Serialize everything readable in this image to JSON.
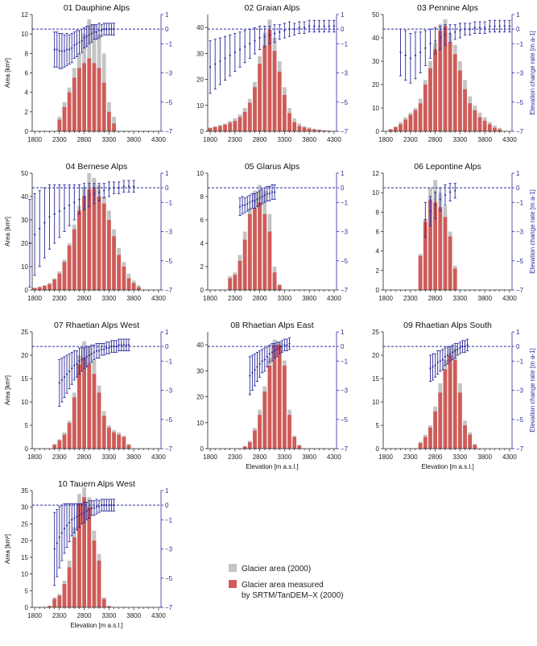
{
  "colors": {
    "bar_total": "#c4c4c4",
    "bar_measured": "#cf5b58",
    "rate": "#2b2b9b",
    "axis": "#222222"
  },
  "labels": {
    "area_axis": "Area [km²]",
    "elevation_axis": "Elevation [m a.s.l.]",
    "rate_axis": "Elevation change rate [m a-1]"
  },
  "legend": {
    "total": "Glacier area (2000)",
    "measured_line1": "Glacier area measured",
    "measured_line2": "by SRTM/TanDEM–X (2000)"
  },
  "chart_data": [
    {
      "type": "bar",
      "title": "01 Dauphine Alps",
      "elev_min": 1800,
      "elev_step": 100,
      "xticks": [
        1800,
        2300,
        2800,
        3300,
        3800,
        4300
      ],
      "ylim": [
        0,
        12
      ],
      "yticks": [
        0,
        2,
        4,
        6,
        8,
        10,
        12
      ],
      "rate_ticks": [
        1,
        0,
        -1,
        -3,
        -5,
        -7
      ],
      "total": [
        0,
        0,
        0,
        0,
        0,
        1.5,
        3,
        4.5,
        6.5,
        8,
        10,
        11.5,
        11,
        10,
        8,
        3,
        1.5
      ],
      "measured": [
        0,
        0,
        0,
        0,
        0,
        1.2,
        2.5,
        4,
        5.5,
        6.5,
        7,
        7.5,
        7,
        6.5,
        5,
        2,
        0.8
      ],
      "rate_elev": [
        2200,
        2250,
        2300,
        2350,
        2400,
        2450,
        2500,
        2550,
        2600,
        2650,
        2700,
        2750,
        2800,
        2850,
        2900,
        2950,
        3000,
        3050,
        3100,
        3150,
        3200,
        3250,
        3300,
        3350,
        3400
      ],
      "rate": [
        -1.4,
        -1.4,
        -1.5,
        -1.5,
        -1.5,
        -1.4,
        -1.4,
        -1.3,
        -1.1,
        -1.0,
        -0.9,
        -0.8,
        -0.6,
        -0.5,
        -0.4,
        -0.3,
        -0.2,
        -0.2,
        -0.1,
        -0.1,
        0.0,
        0.0,
        0.0,
        0.0,
        0.0
      ],
      "rate_err": [
        1.2,
        1.2,
        1.2,
        1.2,
        1.1,
        1.1,
        1.0,
        1.0,
        0.9,
        0.9,
        0.8,
        0.8,
        0.7,
        0.7,
        0.6,
        0.6,
        0.5,
        0.5,
        0.5,
        0.4,
        0.4,
        0.4,
        0.4,
        0.4,
        0.4
      ],
      "show_left_label": true,
      "show_right_label": false,
      "show_xlabel": false
    },
    {
      "type": "bar",
      "title": "02 Graian Alps",
      "elev_min": 1800,
      "elev_step": 100,
      "xticks": [
        1800,
        2300,
        2800,
        3300,
        3800,
        4300
      ],
      "ylim": [
        0,
        45
      ],
      "yticks": [
        0,
        10,
        20,
        30,
        40
      ],
      "rate_ticks": [
        1,
        0,
        -1,
        -3,
        -5,
        -7
      ],
      "total": [
        1.5,
        2,
        2.5,
        3,
        4,
        5,
        6.5,
        9,
        12.5,
        19,
        29,
        38,
        43,
        36,
        27,
        17,
        9,
        5,
        3,
        2,
        1.5,
        1,
        0.7,
        0.4,
        0.3
      ],
      "measured": [
        1.2,
        1.6,
        2,
        2.5,
        3.3,
        4,
        5.5,
        7.5,
        11,
        17,
        26,
        33,
        39,
        31,
        23,
        14,
        7,
        3.5,
        2,
        1.5,
        1,
        0.7,
        0.5,
        0.3,
        0.2
      ],
      "rate_elev": [
        1800,
        1900,
        2000,
        2100,
        2200,
        2300,
        2400,
        2500,
        2600,
        2700,
        2800,
        2900,
        3000,
        3100,
        3200,
        3300,
        3400,
        3500,
        3600,
        3700,
        3800,
        3900,
        4000,
        4100,
        4200,
        4300
      ],
      "rate": [
        -2.6,
        -2.4,
        -2.2,
        -2.0,
        -1.8,
        -1.6,
        -1.4,
        -1.2,
        -1.0,
        -0.8,
        -0.6,
        -0.5,
        -0.4,
        -0.3,
        -0.2,
        -0.1,
        0.0,
        0.0,
        0.1,
        0.1,
        0.2,
        0.2,
        0.2,
        0.2,
        0.2,
        0.2
      ],
      "rate_err": [
        1.8,
        1.7,
        1.6,
        1.5,
        1.4,
        1.3,
        1.2,
        1.1,
        1.0,
        0.9,
        0.8,
        0.7,
        0.6,
        0.6,
        0.5,
        0.5,
        0.5,
        0.4,
        0.4,
        0.4,
        0.4,
        0.4,
        0.4,
        0.4,
        0.4,
        0.4
      ],
      "show_left_label": false,
      "show_right_label": false,
      "show_xlabel": false
    },
    {
      "type": "bar",
      "title": "03 Pennine Alps",
      "elev_min": 1900,
      "elev_step": 100,
      "xticks": [
        1800,
        2300,
        2800,
        3300,
        3800,
        4300
      ],
      "ylim": [
        0,
        50
      ],
      "yticks": [
        0,
        10,
        20,
        30,
        40,
        50
      ],
      "rate_ticks": [
        1,
        0,
        -1,
        -3,
        -5,
        -7
      ],
      "total": [
        1,
        2,
        4,
        6,
        8,
        10,
        14,
        22,
        30,
        38,
        46,
        48,
        42,
        37,
        30,
        22,
        15,
        11,
        8,
        6,
        4,
        2.5,
        1.5
      ],
      "measured": [
        0.8,
        1.8,
        3,
        5,
        7,
        9,
        12,
        20,
        27,
        35,
        43,
        45,
        38,
        33,
        26,
        18,
        12,
        9,
        6,
        4.5,
        3,
        1.5,
        0.8
      ],
      "rate_elev": [
        2100,
        2200,
        2300,
        2400,
        2500,
        2600,
        2700,
        2800,
        2900,
        3000,
        3100,
        3200,
        3300,
        3400,
        3500,
        3600,
        3700,
        3800,
        3900,
        4000,
        4100,
        4200,
        4300
      ],
      "rate": [
        -1.6,
        -1.8,
        -2.0,
        -1.8,
        -1.6,
        -1.3,
        -1.0,
        -0.8,
        -0.6,
        -0.4,
        -0.3,
        -0.2,
        -0.1,
        0.0,
        0.0,
        0.1,
        0.1,
        0.1,
        0.2,
        0.2,
        0.2,
        0.2,
        0.2
      ],
      "rate_err": [
        1.6,
        1.7,
        1.7,
        1.6,
        1.4,
        1.2,
        1.0,
        0.9,
        0.8,
        0.7,
        0.6,
        0.5,
        0.5,
        0.4,
        0.4,
        0.4,
        0.4,
        0.4,
        0.4,
        0.4,
        0.4,
        0.4,
        0.4
      ],
      "show_left_label": false,
      "show_right_label": true,
      "show_xlabel": false
    },
    {
      "type": "bar",
      "title": "04 Bernese Alps",
      "elev_min": 1800,
      "elev_step": 100,
      "xticks": [
        1800,
        2300,
        2800,
        3300,
        3800,
        4300
      ],
      "ylim": [
        0,
        50
      ],
      "yticks": [
        0,
        10,
        20,
        30,
        40,
        50
      ],
      "rate_ticks": [
        1,
        0,
        -1,
        -3,
        -5,
        -7
      ],
      "total": [
        1,
        1.5,
        2,
        3,
        5,
        8,
        13,
        20,
        28,
        36,
        44,
        50,
        48,
        45,
        40,
        34,
        26,
        18,
        12,
        7,
        4,
        2
      ],
      "measured": [
        0.8,
        1.2,
        1.8,
        2.5,
        4.5,
        7,
        12,
        19,
        26,
        34,
        40,
        43,
        44,
        40,
        37,
        30,
        23,
        15,
        10,
        5,
        3,
        1.2
      ],
      "rate_elev": [
        1700,
        1800,
        1900,
        2000,
        2100,
        2200,
        2300,
        2400,
        2500,
        2600,
        2700,
        2800,
        2900,
        3000,
        3100,
        3200,
        3300,
        3400,
        3500,
        3600,
        3700,
        3800
      ],
      "rate": [
        -3.8,
        -3.2,
        -2.8,
        -2.4,
        -2.0,
        -1.8,
        -1.6,
        -1.4,
        -1.2,
        -1.0,
        -0.8,
        -0.6,
        -0.5,
        -0.4,
        -0.3,
        -0.2,
        -0.1,
        0.0,
        0.0,
        0.1,
        0.1,
        0.1
      ],
      "rate_err": [
        3.0,
        2.8,
        2.6,
        2.4,
        2.2,
        2.0,
        1.8,
        1.6,
        1.4,
        1.2,
        1.0,
        0.9,
        0.8,
        0.7,
        0.6,
        0.5,
        0.5,
        0.4,
        0.4,
        0.4,
        0.4,
        0.4
      ],
      "show_left_label": true,
      "show_right_label": false,
      "show_xlabel": false
    },
    {
      "type": "bar",
      "title": "05 Glarus Alps",
      "elev_min": 2200,
      "elev_step": 100,
      "xticks": [
        1800,
        2300,
        2800,
        3300,
        3800,
        4300
      ],
      "ylim": [
        0,
        10
      ],
      "yticks": [
        0,
        2,
        4,
        6,
        8,
        10
      ],
      "rate_ticks": [
        1,
        0,
        -1,
        -3,
        -5,
        -7
      ],
      "total": [
        1.2,
        1.5,
        3,
        5,
        7,
        8.5,
        9,
        8.5,
        6.5,
        2,
        0.5
      ],
      "measured": [
        1,
        1.3,
        2.5,
        4.3,
        6.5,
        7,
        7.5,
        6.5,
        5,
        1.5,
        0.4
      ],
      "rate_elev": [
        2400,
        2450,
        2500,
        2550,
        2600,
        2650,
        2700,
        2750,
        2800,
        2850,
        2900,
        2950,
        3000,
        3050,
        3100
      ],
      "rate": [
        -1.3,
        -1.2,
        -1.2,
        -1.1,
        -1.0,
        -0.9,
        -0.9,
        -0.8,
        -0.7,
        -0.6,
        -0.5,
        -0.4,
        -0.4,
        -0.3,
        -0.3
      ],
      "rate_err": [
        0.6,
        0.6,
        0.5,
        0.5,
        0.5,
        0.5,
        0.5,
        0.5,
        0.5,
        0.5,
        0.5,
        0.5,
        0.5,
        0.5,
        0.5
      ],
      "show_left_label": false,
      "show_right_label": false,
      "show_xlabel": false
    },
    {
      "type": "bar",
      "title": "06 Lepontine Alps",
      "elev_min": 2500,
      "elev_step": 100,
      "xticks": [
        1800,
        2300,
        2800,
        3300,
        3800,
        4300
      ],
      "ylim": [
        0,
        12
      ],
      "yticks": [
        0,
        2,
        4,
        6,
        8,
        10,
        12
      ],
      "rate_ticks": [
        1,
        0,
        -1,
        -3,
        -5,
        -7
      ],
      "total": [
        3.7,
        7.3,
        10.5,
        11.3,
        10,
        8.6,
        6,
        2.5
      ],
      "measured": [
        3.5,
        7,
        9.3,
        9,
        8.5,
        7.5,
        5.5,
        2.2
      ],
      "rate_elev": [
        2600,
        2700,
        2800,
        2900,
        3000,
        3100,
        3200
      ],
      "rate": [
        -2.2,
        -1.6,
        -1.2,
        -0.8,
        -0.5,
        -0.3,
        -0.2
      ],
      "rate_err": [
        1.2,
        1.0,
        0.9,
        0.8,
        0.7,
        0.6,
        0.5
      ],
      "show_left_label": false,
      "show_right_label": true,
      "show_xlabel": false
    },
    {
      "type": "bar",
      "title": "07 Rhaetian Alps West",
      "elev_min": 2200,
      "elev_step": 100,
      "xticks": [
        1800,
        2300,
        2800,
        3300,
        3800,
        4300
      ],
      "ylim": [
        0,
        25
      ],
      "yticks": [
        0,
        5,
        10,
        15,
        20,
        25
      ],
      "rate_ticks": [
        1,
        0,
        -1,
        -3,
        -5,
        -7
      ],
      "total": [
        1,
        2,
        3.5,
        6,
        12,
        20,
        23,
        22,
        19,
        13.5,
        8,
        5,
        4,
        3.5,
        2.8,
        1
      ],
      "measured": [
        0.8,
        1.8,
        3,
        5.5,
        11,
        18,
        19.5,
        18,
        16,
        12,
        7,
        4.5,
        3.5,
        3,
        2.5,
        0.8
      ],
      "rate_elev": [
        2300,
        2350,
        2400,
        2450,
        2500,
        2550,
        2600,
        2650,
        2700,
        2750,
        2800,
        2850,
        2900,
        2950,
        3000,
        3050,
        3100,
        3150,
        3200,
        3250,
        3300,
        3350,
        3400,
        3450,
        3500,
        3550,
        3600,
        3650,
        3700
      ],
      "rate": [
        -2.5,
        -2.3,
        -2.1,
        -1.9,
        -1.7,
        -1.5,
        -1.3,
        -1.2,
        -1.0,
        -0.9,
        -0.8,
        -0.7,
        -0.6,
        -0.5,
        -0.4,
        -0.3,
        -0.3,
        -0.2,
        -0.2,
        -0.1,
        -0.1,
        0.0,
        0.0,
        0.0,
        0.1,
        0.1,
        0.1,
        0.1,
        0.1
      ],
      "rate_err": [
        1.6,
        1.5,
        1.4,
        1.3,
        1.2,
        1.1,
        1.0,
        0.9,
        0.9,
        0.8,
        0.7,
        0.7,
        0.6,
        0.6,
        0.5,
        0.5,
        0.5,
        0.4,
        0.4,
        0.4,
        0.4,
        0.4,
        0.4,
        0.4,
        0.4,
        0.4,
        0.4,
        0.4,
        0.4
      ],
      "show_left_label": true,
      "show_right_label": false,
      "show_xlabel": false
    },
    {
      "type": "bar",
      "title": "08 Rhaetian Alps East",
      "elev_min": 2500,
      "elev_step": 100,
      "xticks": [
        1800,
        2300,
        2800,
        3300,
        3800,
        4300
      ],
      "ylim": [
        0,
        45
      ],
      "yticks": [
        0,
        10,
        20,
        30,
        40
      ],
      "rate_ticks": [
        1,
        0,
        -1,
        -3,
        -5,
        -7
      ],
      "total": [
        1,
        3,
        8,
        15,
        24,
        35,
        42,
        41,
        34,
        15,
        5,
        1.5
      ],
      "measured": [
        0.8,
        2.5,
        7,
        13,
        22,
        32,
        40,
        40,
        32,
        13,
        4.5,
        1.2
      ],
      "rate_elev": [
        2600,
        2650,
        2700,
        2750,
        2800,
        2850,
        2900,
        2950,
        3000,
        3050,
        3100,
        3150,
        3200,
        3250,
        3300,
        3350,
        3400
      ],
      "rate": [
        -2.0,
        -1.8,
        -1.6,
        -1.4,
        -1.2,
        -1.0,
        -0.9,
        -0.7,
        -0.5,
        -0.4,
        -0.3,
        -0.2,
        -0.1,
        0.0,
        0.1,
        0.1,
        0.2
      ],
      "rate_err": [
        1.3,
        1.2,
        1.1,
        1.0,
        0.9,
        0.8,
        0.8,
        0.7,
        0.6,
        0.6,
        0.5,
        0.5,
        0.4,
        0.4,
        0.4,
        0.4,
        0.4
      ],
      "show_left_label": false,
      "show_right_label": false,
      "show_xlabel": true
    },
    {
      "type": "bar",
      "title": "09 Rhaetian Alps South",
      "elev_min": 2500,
      "elev_step": 100,
      "xticks": [
        1800,
        2300,
        2800,
        3300,
        3800,
        4300
      ],
      "ylim": [
        0,
        25
      ],
      "yticks": [
        0,
        5,
        10,
        15,
        20,
        25
      ],
      "rate_ticks": [
        1,
        0,
        -1,
        -3,
        -5,
        -7
      ],
      "total": [
        1.5,
        3,
        5,
        9,
        14,
        19,
        22,
        21.5,
        14,
        6,
        3.5,
        1
      ],
      "measured": [
        1.2,
        2.5,
        4.5,
        8,
        12,
        17,
        20,
        19,
        12,
        5,
        3,
        0.8
      ],
      "rate_elev": [
        2700,
        2750,
        2800,
        2850,
        2900,
        2950,
        3000,
        3050,
        3100,
        3150,
        3200,
        3250,
        3300,
        3350,
        3400,
        3450
      ],
      "rate": [
        -1.5,
        -1.4,
        -1.3,
        -1.1,
        -1.0,
        -0.9,
        -0.7,
        -0.6,
        -0.5,
        -0.4,
        -0.3,
        -0.2,
        -0.1,
        0.0,
        0.0,
        0.1
      ],
      "rate_err": [
        0.9,
        0.9,
        0.8,
        0.8,
        0.7,
        0.7,
        0.6,
        0.6,
        0.5,
        0.5,
        0.5,
        0.4,
        0.4,
        0.4,
        0.4,
        0.4
      ],
      "show_left_label": false,
      "show_right_label": true,
      "show_xlabel": true
    },
    {
      "type": "bar",
      "title": "10 Tauern Alps West",
      "elev_min": 2100,
      "elev_step": 100,
      "xticks": [
        1800,
        2300,
        2800,
        3300,
        3800,
        4300
      ],
      "ylim": [
        0,
        35
      ],
      "yticks": [
        0,
        5,
        10,
        15,
        20,
        25,
        30,
        35
      ],
      "rate_ticks": [
        1,
        0,
        -1,
        -3,
        -5,
        -7
      ],
      "total": [
        0.5,
        3,
        4,
        8,
        14,
        24,
        34,
        36,
        33,
        23,
        16,
        3,
        0.5
      ],
      "measured": [
        0.4,
        2.5,
        3.5,
        7,
        12,
        21,
        31,
        33,
        30,
        20,
        14,
        2.5,
        0.3
      ],
      "rate_elev": [
        2200,
        2250,
        2300,
        2350,
        2400,
        2450,
        2500,
        2550,
        2600,
        2650,
        2700,
        2750,
        2800,
        2850,
        2900,
        2950,
        3000,
        3050,
        3100,
        3150,
        3200,
        3250,
        3300,
        3350,
        3400
      ],
      "rate": [
        -3.0,
        -2.6,
        -2.2,
        -1.9,
        -1.6,
        -1.4,
        -1.2,
        -1.0,
        -0.9,
        -0.8,
        -0.7,
        -0.6,
        -0.5,
        -0.4,
        -0.3,
        -0.2,
        -0.2,
        -0.1,
        -0.1,
        0.0,
        0.0,
        0.0,
        0.0,
        0.0,
        0.0
      ],
      "rate_err": [
        2.5,
        2.3,
        2.1,
        1.9,
        1.7,
        1.5,
        1.3,
        1.1,
        1.0,
        0.9,
        0.8,
        0.7,
        0.7,
        0.6,
        0.6,
        0.5,
        0.5,
        0.5,
        0.4,
        0.4,
        0.4,
        0.4,
        0.4,
        0.4,
        0.4
      ],
      "show_left_label": true,
      "show_right_label": false,
      "show_xlabel": true
    }
  ]
}
